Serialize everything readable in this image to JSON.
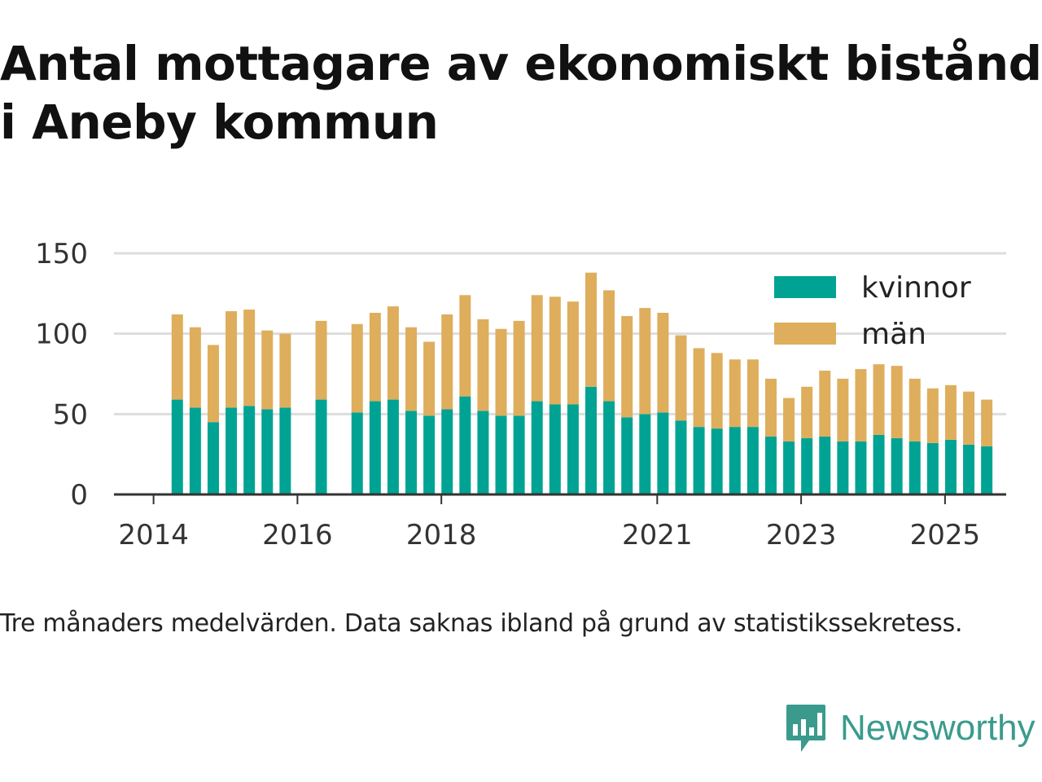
{
  "title": "Antal mottagare av ekonomiskt bistånd i Aneby kommun",
  "caption": "Tre månaders medelvärden. Data saknas ibland på grund av statistikssekretess.",
  "brand": {
    "name": "Newsworthy",
    "icon": "newsworthy-bar-chart-icon"
  },
  "chart_data": {
    "type": "bar",
    "stacked": true,
    "title": "Antal mottagare av ekonomiskt bistånd i Aneby kommun",
    "xlabel": "",
    "ylabel": "",
    "ylim": [
      0,
      150
    ],
    "yticks": [
      0,
      50,
      100,
      150
    ],
    "xtick_labels": [
      {
        "label": "2014",
        "x": 2014.0
      },
      {
        "label": "2016",
        "x": 2016.0
      },
      {
        "label": "2018",
        "x": 2018.0
      },
      {
        "label": "2021",
        "x": 2021.0
      },
      {
        "label": "2023",
        "x": 2023.0
      },
      {
        "label": "2025",
        "x": 2025.0
      }
    ],
    "legend": "top-right",
    "x": [
      2014.33,
      2014.58,
      2014.83,
      2015.08,
      2015.33,
      2015.58,
      2015.83,
      2016.08,
      2016.33,
      2016.58,
      2016.83,
      2017.08,
      2017.33,
      2017.58,
      2017.83,
      2018.08,
      2018.33,
      2018.58,
      2018.83,
      2019.08,
      2019.33,
      2019.58,
      2019.83,
      2020.08,
      2020.33,
      2020.58,
      2020.83,
      2021.08,
      2021.33,
      2021.58,
      2021.83,
      2022.08,
      2022.33,
      2022.58,
      2022.83,
      2023.08,
      2023.33,
      2023.58,
      2023.83,
      2024.08,
      2024.33,
      2024.58,
      2024.83,
      2025.08,
      2025.33,
      2025.58
    ],
    "series": [
      {
        "name": "kvinnor",
        "color": "#00a393",
        "values": [
          59,
          54,
          45,
          54,
          55,
          53,
          54,
          null,
          59,
          null,
          51,
          58,
          59,
          52,
          49,
          53,
          61,
          52,
          49,
          49,
          58,
          56,
          56,
          67,
          58,
          48,
          50,
          51,
          46,
          42,
          41,
          42,
          42,
          36,
          33,
          35,
          36,
          33,
          33,
          37,
          35,
          33,
          32,
          34,
          31,
          30
        ]
      },
      {
        "name": "män",
        "color": "#deae5c",
        "values": [
          53,
          50,
          48,
          60,
          60,
          49,
          46,
          null,
          49,
          null,
          55,
          55,
          58,
          52,
          46,
          59,
          63,
          57,
          54,
          59,
          66,
          67,
          64,
          71,
          69,
          63,
          66,
          62,
          53,
          49,
          47,
          42,
          42,
          36,
          27,
          32,
          41,
          39,
          45,
          44,
          45,
          39,
          34,
          34,
          33,
          29
        ]
      }
    ],
    "annotations": []
  }
}
